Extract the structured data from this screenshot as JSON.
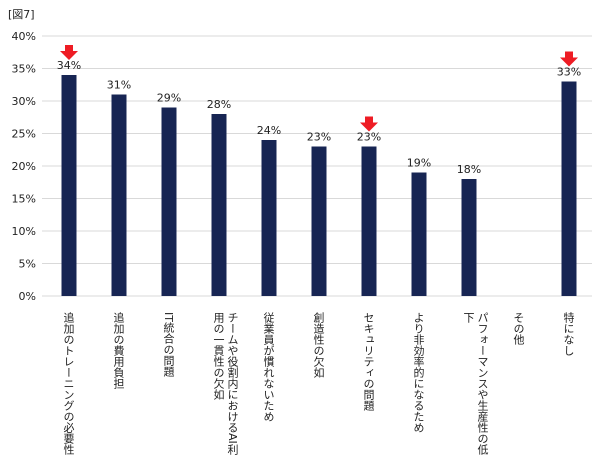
{
  "figure_label": "[図7]",
  "colors": {
    "bar": "#172553",
    "marker": "#ee1c24",
    "grid": "#d9d9d9"
  },
  "chart_data": {
    "type": "bar",
    "categories": [
      "追加のトレーニングの必要性",
      "追加の費用負担",
      "IT統合の問題",
      "チームや役割内におけるAI利用の一貫性の欠如",
      "従業員が慣れないため",
      "創造性の欠如",
      "セキュリティの問題",
      "より非効率的になるため",
      "パフォーマンスや生産性の低下",
      "その他",
      "特になし"
    ],
    "values": [
      34,
      31,
      29,
      28,
      24,
      23,
      23,
      19,
      18,
      null,
      33
    ],
    "value_labels": [
      "34%",
      "31%",
      "29%",
      "28%",
      "24%",
      "23%",
      "23%",
      "19%",
      "18%",
      "",
      "33%"
    ],
    "y_ticks": [
      "0%",
      "5%",
      "10%",
      "15%",
      "20%",
      "25%",
      "30%",
      "35%",
      "40%"
    ],
    "ylim": [
      0,
      40
    ],
    "grid": true,
    "highlighted_categories": [
      0,
      6,
      10
    ]
  }
}
